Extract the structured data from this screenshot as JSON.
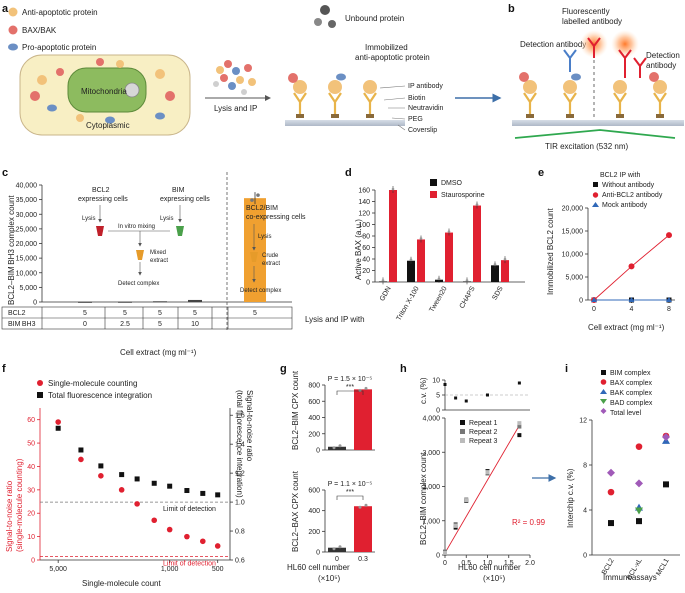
{
  "colors": {
    "anti": "#f2c27a",
    "bax": "#e3716b",
    "pro": "#6b8fc4",
    "mito": "#8dbb5f",
    "cyto": "#f8efc4",
    "red": "#e02030",
    "orange": "#f0a030"
  },
  "panel_a": {
    "label": "a",
    "legend": [
      "Anti-apoptotic protein",
      "BAX/BAK",
      "Pro-apoptotic protein"
    ],
    "mitochondria": "Mitochondria",
    "cytoplasmic": "Cytoplasmic",
    "step": "Lysis and IP",
    "unbound": "Unbound protein",
    "immobilized": "Immobilized\nanti-apoptotic protein",
    "layers": [
      "IP antibody",
      "Biotin",
      "Neutravidin",
      "PEG",
      "Coverslip"
    ]
  },
  "panel_b": {
    "label": "b",
    "fluor": "Fluorescently\nlabelled antibody",
    "detection1": "Detection antibody",
    "detection2": "Detection\nantibody",
    "tir": "TIR excitation (532 nm)"
  },
  "panel_c": {
    "label": "c",
    "ylabel": "BCL2–BIM BH3 complex count",
    "yticks": [
      "0",
      "5,000",
      "10,000",
      "15,000",
      "20,000",
      "25,000",
      "30,000",
      "35,000",
      "40,000"
    ],
    "flow_left": {
      "bcl2": "BCL2\nexpressing cells",
      "bim": "BIM BH3\nexpressing cells",
      "lysis": "Lysis",
      "mix": "In vitro mixing",
      "mixed": "Mixed\nextract",
      "detect": "Detect complex"
    },
    "flow_right": {
      "co": "BCL2/BIM BH3\nco-expressing cells",
      "lysis": "Lysis",
      "crude": "Crude\nextract",
      "detect": "Detect complex"
    },
    "row_labels": [
      "BCL2",
      "BIM BH3"
    ],
    "row_bcl2": [
      "5",
      "5",
      "5",
      "5",
      "5"
    ],
    "row_bim": [
      "0",
      "2.5",
      "5",
      "10"
    ],
    "xlabel": "Cell extract (mg ml⁻¹)"
  },
  "panel_d": {
    "label": "d",
    "ylabel": "Active BAX (a.u.)",
    "yticks": [
      "0",
      "20",
      "40",
      "60",
      "80",
      "100",
      "120",
      "140",
      "160"
    ],
    "legend": [
      "DMSO",
      "Staurosporine"
    ],
    "categories": [
      "GDN",
      "Triton X-100",
      "Tween20",
      "CHAPS",
      "SDS"
    ],
    "xlabel": "Lysis and IP with"
  },
  "panel_e": {
    "label": "e",
    "legend_title": "BCL2 IP with",
    "legend": [
      "Without antibody",
      "Anti-BCL2 antibody",
      "Mock antibody"
    ],
    "ylabel": "Immobilized BCL2 count",
    "yticks": [
      "0",
      "5,000",
      "10,000",
      "15,000",
      "20,000"
    ],
    "xticks": [
      "0",
      "4",
      "8"
    ],
    "xlabel": "Cell extract (mg ml⁻¹)"
  },
  "panel_f": {
    "label": "f",
    "legend": [
      "Single-molecule counting",
      "Total fluorescence integration"
    ],
    "ylabel_left": "Signal-to-noise ratio\n(single-molecule counting)",
    "ylabel_right": "Signal-to-noise ratio\n(total fluorescence integration)",
    "yticks_left": [
      "0",
      "10",
      "20",
      "30",
      "40",
      "50",
      "60"
    ],
    "yticks_right": [
      "0.6",
      "0.8",
      "1.0",
      "1.2",
      "1.4",
      "1.6"
    ],
    "xticks": [
      "5,000",
      "1,000",
      "500"
    ],
    "lod1": "Limit of detection",
    "lod2": "Limit of detection",
    "xlabel": "Single-molecule count"
  },
  "panel_g": {
    "label": "g",
    "top": {
      "ylabel": "BCL2–BIM CPX count",
      "yticks": [
        "0",
        "200",
        "400",
        "600",
        "800"
      ],
      "p": "P = 1.5 × 10⁻⁵",
      "sig": "***"
    },
    "bottom": {
      "ylabel": "BCL2–BAX CPX count",
      "yticks": [
        "0",
        "200",
        "400",
        "600"
      ],
      "p": "P = 1.1 × 10⁻⁵",
      "sig": "***"
    },
    "xticks": [
      "0",
      "0.3"
    ],
    "xlabel": "HL60 cell number\n(×10⁵)"
  },
  "panel_h": {
    "label": "h",
    "cv_label": "c.v. (%)",
    "cv_ticks": [
      "0",
      "5",
      "10"
    ],
    "ylabel": "BCL2–BIM complex count",
    "yticks": [
      "0",
      "1,000",
      "2,000",
      "3,000",
      "4,000"
    ],
    "xticks": [
      "0",
      "0.5",
      "1.0",
      "1.5",
      "2.0"
    ],
    "legend": [
      "Repeat 1",
      "Repeat 2",
      "Repeat 3"
    ],
    "r2": "R² = 0.99",
    "xlabel": "HL60 cell number\n(×10⁵)"
  },
  "panel_i": {
    "label": "i",
    "legend": [
      "BIM complex",
      "BAX complex",
      "BAK complex",
      "BAD complex",
      "Total level"
    ],
    "ylabel": "Interchip c.v. (%)",
    "yticks": [
      "0",
      "4",
      "8",
      "12"
    ],
    "categories": [
      "BCL2",
      "BCL-xL",
      "MCL1"
    ],
    "xlabel": "Immunoassays"
  },
  "chart_data": [
    {
      "panel": "c",
      "type": "bar",
      "categories": [
        "BCL2 5 / BIM 0",
        "BCL2 5 / BIM 2.5",
        "BCL2 5 / BIM 5",
        "BCL2 5 / BIM 10",
        "Co-expressed 5"
      ],
      "values": [
        60,
        80,
        250,
        700,
        35500
      ],
      "ylim": [
        0,
        40000
      ]
    },
    {
      "panel": "d",
      "type": "bar",
      "categories": [
        "GDN",
        "Triton X-100",
        "Tween20",
        "CHAPS",
        "SDS"
      ],
      "series": [
        {
          "name": "DMSO",
          "values": [
            1,
            37,
            4,
            1,
            29
          ]
        },
        {
          "name": "Staurosporine",
          "values": [
            160,
            74,
            86,
            133,
            38
          ]
        }
      ],
      "ylim": [
        0,
        180
      ]
    },
    {
      "panel": "e",
      "type": "line",
      "x": [
        0,
        4,
        8
      ],
      "series": [
        {
          "name": "Without antibody",
          "values": [
            0,
            0,
            0
          ]
        },
        {
          "name": "Anti-BCL2 antibody",
          "values": [
            0,
            7300,
            14100
          ]
        },
        {
          "name": "Mock antibody",
          "values": [
            0,
            0,
            0
          ]
        }
      ],
      "ylim": [
        0,
        20000
      ]
    },
    {
      "panel": "f",
      "type": "scatter",
      "x": [
        5000,
        3600,
        2700,
        2000,
        1600,
        1250,
        1000,
        780,
        620,
        500
      ],
      "series": [
        {
          "name": "Single-molecule counting",
          "values": [
            59,
            43,
            36,
            30,
            24,
            17,
            13,
            10,
            8,
            6
          ]
        },
        {
          "name": "Total fluorescence integration",
          "values": [
            1.51,
            1.36,
            1.25,
            1.19,
            1.16,
            1.13,
            1.11,
            1.08,
            1.06,
            1.05
          ]
        }
      ]
    },
    {
      "panel": "g",
      "type": "bar",
      "categories": [
        "0",
        "0.3"
      ],
      "series": [
        {
          "name": "BCL2–BIM CPX count",
          "values": [
            45,
            840
          ]
        },
        {
          "name": "BCL2–BAX CPX count",
          "values": [
            45,
            480
          ]
        }
      ]
    },
    {
      "panel": "h",
      "type": "scatter",
      "x": [
        0,
        0.25,
        0.5,
        1.0,
        1.75
      ],
      "series": [
        {
          "name": "Repeat 1",
          "values": [
            50,
            800,
            1580,
            2450,
            3500
          ]
        },
        {
          "name": "Repeat 2",
          "values": [
            100,
            900,
            1620,
            2380,
            3750
          ]
        },
        {
          "name": "Repeat 3",
          "values": [
            60,
            850,
            1600,
            2420,
            3850
          ]
        }
      ],
      "cv": [
        8.5,
        4.0,
        3.0,
        5.0,
        9.0
      ],
      "r2": 0.99
    },
    {
      "panel": "i",
      "type": "scatter",
      "categories": [
        "BCL2",
        "BCL-xL",
        "MCL1"
      ],
      "series": [
        {
          "name": "BIM complex",
          "values": [
            3.3,
            3.5,
            7.3
          ]
        },
        {
          "name": "BAX complex",
          "values": [
            6.5,
            11.2,
            12.3
          ]
        },
        {
          "name": "BAK complex",
          "values": [
            null,
            4.9,
            11.8
          ]
        },
        {
          "name": "BAD complex",
          "values": [
            null,
            4.6,
            null
          ]
        },
        {
          "name": "Total level",
          "values": [
            8.5,
            7.4,
            12.2
          ]
        }
      ],
      "ylim": [
        0,
        14
      ]
    }
  ]
}
